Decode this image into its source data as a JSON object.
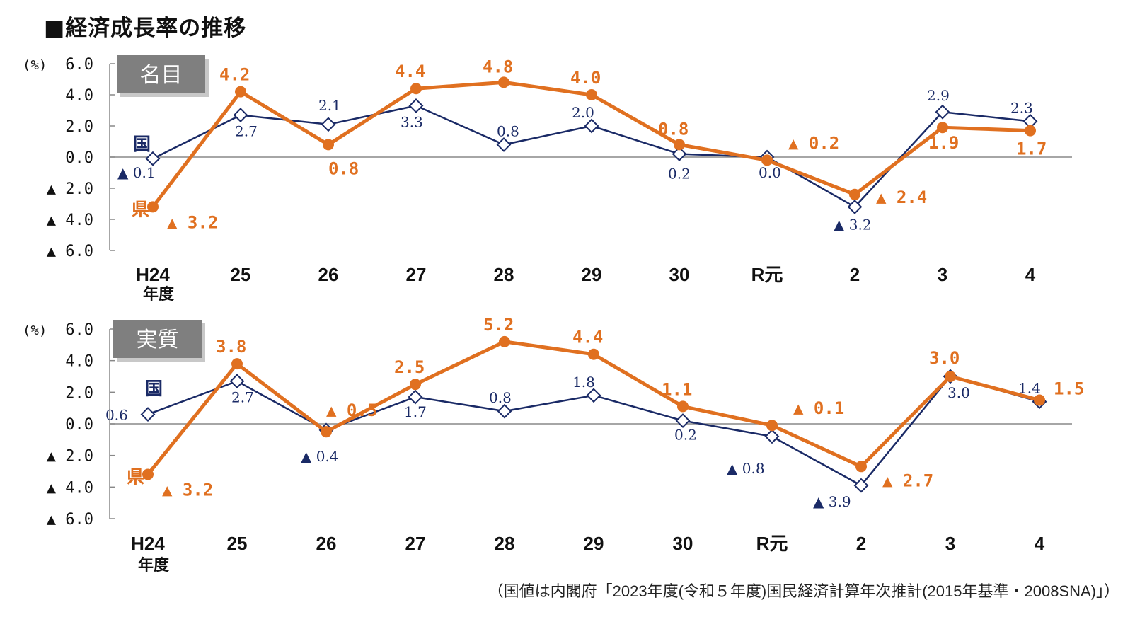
{
  "title": "■経済成長率の推移",
  "source_note": "（国値は内閣府「2023年度(令和５年度)国民経済計算年次推計(2015年基準・2008SNA)」）",
  "colors": {
    "prefecture": "#e07020",
    "national": "#1a2a66",
    "tag_bg": "#7f7f7f",
    "axis": "#888888"
  },
  "chart_data": [
    {
      "type": "line",
      "tag": "名目",
      "unit": "(%)",
      "ylim": [
        -6,
        6
      ],
      "y_ticks": [
        {
          "value": 6,
          "label": "6.0"
        },
        {
          "value": 4,
          "label": "4.0"
        },
        {
          "value": 2,
          "label": "2.0"
        },
        {
          "value": 0,
          "label": "0.0"
        },
        {
          "value": -2,
          "label": "▲ 2.0"
        },
        {
          "value": -4,
          "label": "▲ 4.0"
        },
        {
          "value": -6,
          "label": "▲ 6.0"
        }
      ],
      "categories": [
        "H24",
        "25",
        "26",
        "27",
        "28",
        "29",
        "30",
        "R元",
        "2",
        "3",
        "4"
      ],
      "first_category_sub": "年度",
      "series": [
        {
          "name": "県",
          "key": "prefecture",
          "values": [
            -3.2,
            4.2,
            0.8,
            4.4,
            4.8,
            4.0,
            0.8,
            -0.2,
            -2.4,
            1.9,
            1.7
          ],
          "labels": [
            "▲ 3.2",
            "4.2",
            "0.8",
            "4.4",
            "4.8",
            "4.0",
            "0.8",
            "▲ 0.2",
            "▲ 2.4",
            "1.9",
            "1.7"
          ]
        },
        {
          "name": "国",
          "key": "national",
          "values": [
            -0.1,
            2.7,
            2.1,
            3.3,
            0.8,
            2.0,
            0.2,
            0.0,
            -3.2,
            2.9,
            2.3
          ],
          "labels": [
            "▲ 0.1",
            "2.7",
            "2.1",
            "3.3",
            "0.8",
            "2.0",
            "0.2",
            "0.0",
            "▲ 3.2",
            "2.9",
            "2.3"
          ]
        }
      ]
    },
    {
      "type": "line",
      "tag": "実質",
      "unit": "(%)",
      "ylim": [
        -6,
        6
      ],
      "y_ticks": [
        {
          "value": 6,
          "label": "6.0"
        },
        {
          "value": 4,
          "label": "4.0"
        },
        {
          "value": 2,
          "label": "2.0"
        },
        {
          "value": 0,
          "label": "0.0"
        },
        {
          "value": -2,
          "label": "▲ 2.0"
        },
        {
          "value": -4,
          "label": "▲ 4.0"
        },
        {
          "value": -6,
          "label": "▲ 6.0"
        }
      ],
      "categories": [
        "H24",
        "25",
        "26",
        "27",
        "28",
        "29",
        "30",
        "R元",
        "2",
        "3",
        "4"
      ],
      "first_category_sub": "年度",
      "series": [
        {
          "name": "県",
          "key": "prefecture",
          "values": [
            -3.2,
            3.8,
            -0.5,
            2.5,
            5.2,
            4.4,
            1.1,
            -0.1,
            -2.7,
            3.0,
            1.5
          ],
          "labels": [
            "▲ 3.2",
            "3.8",
            "▲ 0.5",
            "2.5",
            "5.2",
            "4.4",
            "1.1",
            "▲ 0.1",
            "▲ 2.7",
            "3.0",
            "1.5"
          ]
        },
        {
          "name": "国",
          "key": "national",
          "values": [
            0.6,
            2.7,
            -0.4,
            1.7,
            0.8,
            1.8,
            0.2,
            -0.8,
            -3.9,
            3.0,
            1.4
          ],
          "labels": [
            "0.6",
            "2.7",
            "▲ 0.4",
            "1.7",
            "0.8",
            "1.8",
            "0.2",
            "▲ 0.8",
            "▲ 3.9",
            "3.0",
            "1.4"
          ]
        }
      ]
    }
  ]
}
